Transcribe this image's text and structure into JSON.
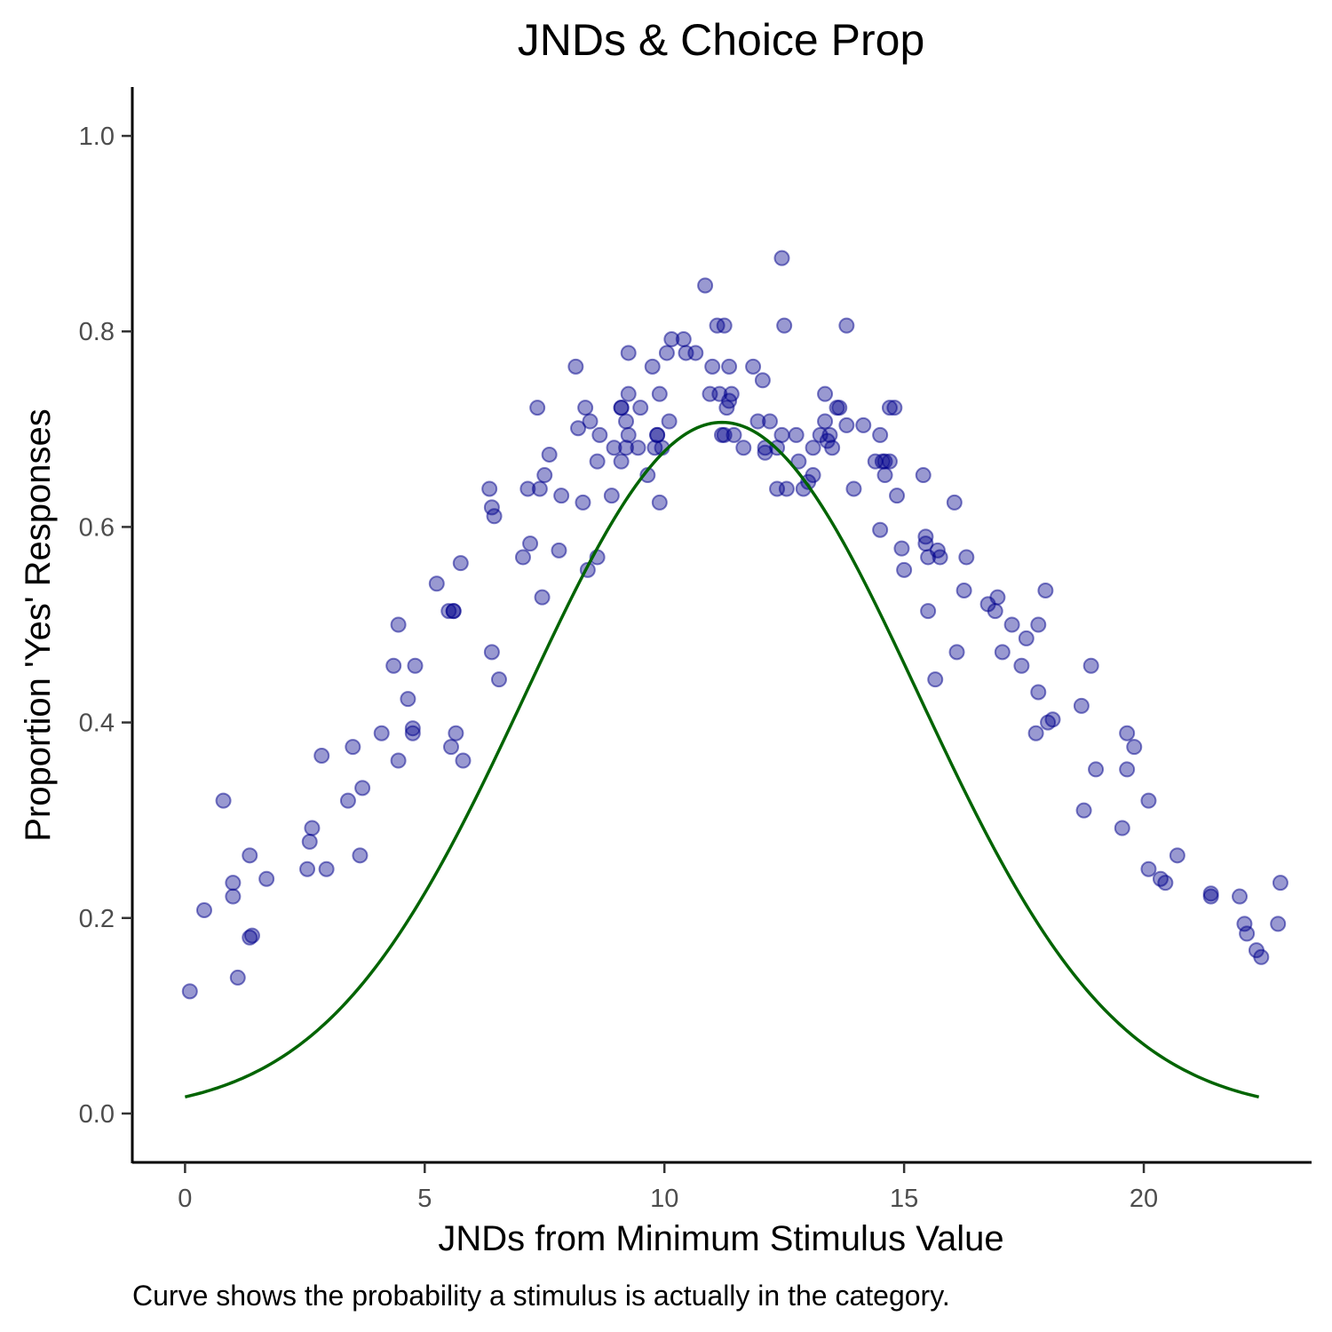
{
  "chart_data": {
    "type": "scatter",
    "title": "JNDs & Choice Prop",
    "xlabel": "JNDs from Minimum Stimulus Value",
    "ylabel": "Proportion 'Yes' Responses",
    "caption": "Curve shows the probability a stimulus is actually in the category.",
    "xlim": [
      -1.1,
      23.5
    ],
    "ylim": [
      -0.05,
      1.05
    ],
    "x_ticks": [
      0,
      5,
      10,
      15,
      20
    ],
    "x_tick_labels": [
      "0",
      "5",
      "10",
      "15",
      "20"
    ],
    "y_ticks": [
      0.0,
      0.2,
      0.4,
      0.6,
      0.8,
      1.0
    ],
    "y_tick_labels": [
      "0.0",
      "0.2",
      "0.4",
      "0.6",
      "0.8",
      "1.0"
    ],
    "grid": false,
    "legend": "none",
    "colors": {
      "points": "#00008b",
      "curve": "#006400"
    },
    "points": [
      [
        0.1,
        0.125
      ],
      [
        0.4,
        0.208
      ],
      [
        0.8,
        0.32
      ],
      [
        1.0,
        0.222
      ],
      [
        1.0,
        0.236
      ],
      [
        1.1,
        0.139
      ],
      [
        1.35,
        0.264
      ],
      [
        1.35,
        0.18
      ],
      [
        1.4,
        0.182
      ],
      [
        1.7,
        0.24
      ],
      [
        2.55,
        0.25
      ],
      [
        2.6,
        0.278
      ],
      [
        2.65,
        0.292
      ],
      [
        2.85,
        0.366
      ],
      [
        2.95,
        0.25
      ],
      [
        3.4,
        0.32
      ],
      [
        3.5,
        0.375
      ],
      [
        3.65,
        0.264
      ],
      [
        3.7,
        0.333
      ],
      [
        4.1,
        0.389
      ],
      [
        4.35,
        0.458
      ],
      [
        4.45,
        0.5
      ],
      [
        4.45,
        0.361
      ],
      [
        4.65,
        0.424
      ],
      [
        4.75,
        0.394
      ],
      [
        4.75,
        0.389
      ],
      [
        4.8,
        0.458
      ],
      [
        5.25,
        0.542
      ],
      [
        5.5,
        0.514
      ],
      [
        5.55,
        0.375
      ],
      [
        5.6,
        0.514
      ],
      [
        5.6,
        0.514
      ],
      [
        5.65,
        0.389
      ],
      [
        5.75,
        0.563
      ],
      [
        5.8,
        0.361
      ],
      [
        6.35,
        0.639
      ],
      [
        6.4,
        0.472
      ],
      [
        6.4,
        0.62
      ],
      [
        6.45,
        0.611
      ],
      [
        6.55,
        0.444
      ],
      [
        7.05,
        0.569
      ],
      [
        7.15,
        0.639
      ],
      [
        7.2,
        0.583
      ],
      [
        7.35,
        0.722
      ],
      [
        7.4,
        0.639
      ],
      [
        7.45,
        0.528
      ],
      [
        7.5,
        0.653
      ],
      [
        7.6,
        0.674
      ],
      [
        7.8,
        0.576
      ],
      [
        7.85,
        0.632
      ],
      [
        8.15,
        0.764
      ],
      [
        8.2,
        0.701
      ],
      [
        8.3,
        0.625
      ],
      [
        8.35,
        0.722
      ],
      [
        8.45,
        0.708
      ],
      [
        8.4,
        0.556
      ],
      [
        8.6,
        0.569
      ],
      [
        8.6,
        0.667
      ],
      [
        8.65,
        0.694
      ],
      [
        8.9,
        0.632
      ],
      [
        8.95,
        0.681
      ],
      [
        9.1,
        0.722
      ],
      [
        9.1,
        0.722
      ],
      [
        9.1,
        0.667
      ],
      [
        9.2,
        0.681
      ],
      [
        9.2,
        0.708
      ],
      [
        9.25,
        0.694
      ],
      [
        9.25,
        0.778
      ],
      [
        9.25,
        0.736
      ],
      [
        9.45,
        0.681
      ],
      [
        9.5,
        0.722
      ],
      [
        9.65,
        0.653
      ],
      [
        9.75,
        0.764
      ],
      [
        9.8,
        0.681
      ],
      [
        9.85,
        0.694
      ],
      [
        9.85,
        0.694
      ],
      [
        9.9,
        0.625
      ],
      [
        9.9,
        0.736
      ],
      [
        9.95,
        0.681
      ],
      [
        10.05,
        0.778
      ],
      [
        10.1,
        0.708
      ],
      [
        10.15,
        0.792
      ],
      [
        10.4,
        0.792
      ],
      [
        10.45,
        0.778
      ],
      [
        10.65,
        0.778
      ],
      [
        10.85,
        0.847
      ],
      [
        10.95,
        0.736
      ],
      [
        11.0,
        0.764
      ],
      [
        11.1,
        0.806
      ],
      [
        11.15,
        0.736
      ],
      [
        11.2,
        0.694
      ],
      [
        11.25,
        0.806
      ],
      [
        11.25,
        0.694
      ],
      [
        11.3,
        0.722
      ],
      [
        11.35,
        0.764
      ],
      [
        11.35,
        0.729
      ],
      [
        11.4,
        0.736
      ],
      [
        11.45,
        0.694
      ],
      [
        11.65,
        0.681
      ],
      [
        11.85,
        0.764
      ],
      [
        11.95,
        0.708
      ],
      [
        12.05,
        0.75
      ],
      [
        12.1,
        0.681
      ],
      [
        12.1,
        0.676
      ],
      [
        12.2,
        0.708
      ],
      [
        12.35,
        0.639
      ],
      [
        12.35,
        0.681
      ],
      [
        12.45,
        0.694
      ],
      [
        12.45,
        0.875
      ],
      [
        12.5,
        0.806
      ],
      [
        12.55,
        0.639
      ],
      [
        12.75,
        0.694
      ],
      [
        12.8,
        0.667
      ],
      [
        12.9,
        0.639
      ],
      [
        13.0,
        0.646
      ],
      [
        13.1,
        0.653
      ],
      [
        13.1,
        0.681
      ],
      [
        13.25,
        0.694
      ],
      [
        13.35,
        0.708
      ],
      [
        13.35,
        0.736
      ],
      [
        13.4,
        0.688
      ],
      [
        13.45,
        0.694
      ],
      [
        13.5,
        0.681
      ],
      [
        13.6,
        0.722
      ],
      [
        13.65,
        0.722
      ],
      [
        13.8,
        0.806
      ],
      [
        13.8,
        0.704
      ],
      [
        13.95,
        0.639
      ],
      [
        14.15,
        0.704
      ],
      [
        14.4,
        0.667
      ],
      [
        14.5,
        0.694
      ],
      [
        14.5,
        0.597
      ],
      [
        14.55,
        0.667
      ],
      [
        14.6,
        0.653
      ],
      [
        14.6,
        0.667
      ],
      [
        14.7,
        0.667
      ],
      [
        14.7,
        0.722
      ],
      [
        14.8,
        0.722
      ],
      [
        14.85,
        0.632
      ],
      [
        14.95,
        0.578
      ],
      [
        15.0,
        0.556
      ],
      [
        15.4,
        0.653
      ],
      [
        15.45,
        0.59
      ],
      [
        15.45,
        0.583
      ],
      [
        15.5,
        0.569
      ],
      [
        15.5,
        0.514
      ],
      [
        15.65,
        0.444
      ],
      [
        15.7,
        0.576
      ],
      [
        15.75,
        0.569
      ],
      [
        16.05,
        0.625
      ],
      [
        16.1,
        0.472
      ],
      [
        16.25,
        0.535
      ],
      [
        16.3,
        0.569
      ],
      [
        16.75,
        0.521
      ],
      [
        16.9,
        0.514
      ],
      [
        16.95,
        0.528
      ],
      [
        17.05,
        0.472
      ],
      [
        17.25,
        0.5
      ],
      [
        17.45,
        0.458
      ],
      [
        17.55,
        0.486
      ],
      [
        17.75,
        0.389
      ],
      [
        17.8,
        0.431
      ],
      [
        17.8,
        0.5
      ],
      [
        17.95,
        0.535
      ],
      [
        18.0,
        0.4
      ],
      [
        18.1,
        0.403
      ],
      [
        18.7,
        0.417
      ],
      [
        18.75,
        0.31
      ],
      [
        18.9,
        0.458
      ],
      [
        19.0,
        0.352
      ],
      [
        19.55,
        0.292
      ],
      [
        19.65,
        0.389
      ],
      [
        19.65,
        0.352
      ],
      [
        19.8,
        0.375
      ],
      [
        20.1,
        0.32
      ],
      [
        20.1,
        0.25
      ],
      [
        20.35,
        0.24
      ],
      [
        20.45,
        0.236
      ],
      [
        20.7,
        0.264
      ],
      [
        21.4,
        0.222
      ],
      [
        21.4,
        0.225
      ],
      [
        22.0,
        0.222
      ],
      [
        22.1,
        0.194
      ],
      [
        22.15,
        0.184
      ],
      [
        22.35,
        0.167
      ],
      [
        22.45,
        0.16
      ],
      [
        22.8,
        0.194
      ],
      [
        22.85,
        0.236
      ]
    ],
    "curve": {
      "name": "",
      "x_range": [
        0,
        22.4
      ],
      "peak": 0.707,
      "mean": 11.2,
      "sd": 4.1
    }
  }
}
